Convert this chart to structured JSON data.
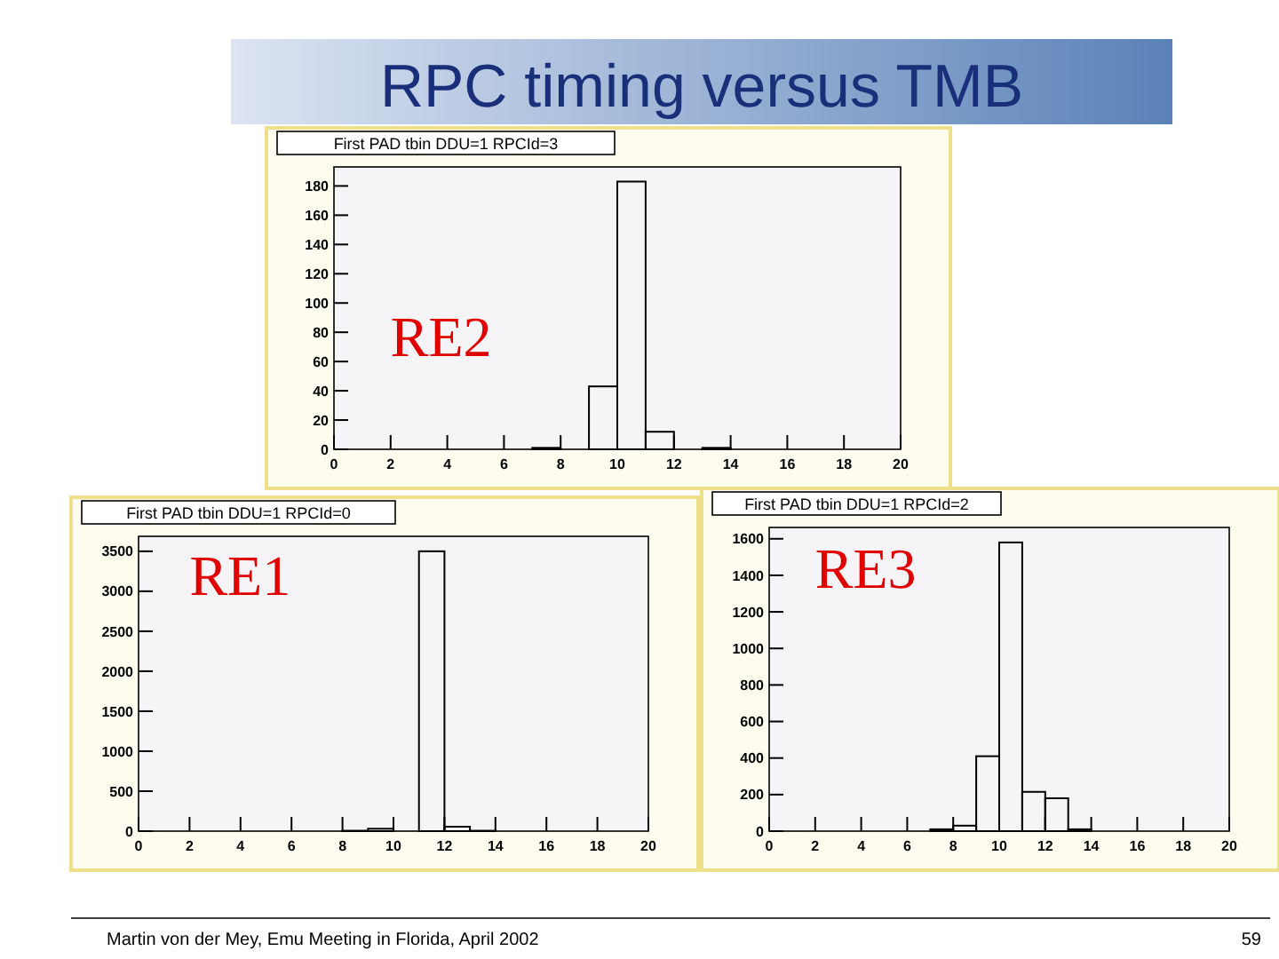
{
  "chart_data": [
    {
      "type": "histogram",
      "title": "First PAD tbin DDU=1 RPCId=3",
      "color": "#000000",
      "bins": [
        0,
        1,
        2,
        3,
        4,
        5,
        6,
        7,
        8,
        9,
        10,
        11,
        12,
        13,
        14,
        15,
        16,
        17,
        18,
        19,
        20
      ],
      "values": [
        0,
        0,
        0,
        0,
        0,
        0,
        0,
        1,
        0,
        43,
        183,
        12,
        0,
        1,
        0,
        0,
        0,
        0,
        0,
        0
      ],
      "xlim": [
        0,
        20
      ],
      "xticks": [
        0,
        2,
        4,
        6,
        8,
        10,
        12,
        14,
        16,
        18,
        20
      ],
      "ylim": [
        0,
        193
      ],
      "yticks": [
        0,
        20,
        40,
        60,
        80,
        100,
        120,
        140,
        160,
        180
      ],
      "annotations": [
        "RE2",
        "RPC timing versus TMB",
        "Martin von der Mey, Emu Meeting in Florida, April 2002",
        "59"
      ]
    },
    {
      "type": "histogram",
      "title": "First PAD tbin DDU=1 RPCId=0",
      "color": "#000000",
      "bins": [
        0,
        1,
        2,
        3,
        4,
        5,
        6,
        7,
        8,
        9,
        10,
        11,
        12,
        13,
        14,
        15,
        16,
        17,
        18,
        19,
        20
      ],
      "values": [
        0,
        0,
        0,
        0,
        0,
        0,
        0,
        0,
        5,
        30,
        0,
        3500,
        55,
        5,
        0,
        0,
        0,
        0,
        0,
        0
      ],
      "xlim": [
        0,
        20
      ],
      "xticks": [
        0,
        2,
        4,
        6,
        8,
        10,
        12,
        14,
        16,
        18,
        20
      ],
      "ylim": [
        0,
        3687
      ],
      "yticks": [
        0,
        500,
        1000,
        1500,
        2000,
        2500,
        3000,
        3500
      ],
      "annotations": [
        "RE1"
      ]
    },
    {
      "type": "histogram",
      "title": "First PAD tbin DDU=1 RPCId=2",
      "color": "#000000",
      "bins": [
        0,
        1,
        2,
        3,
        4,
        5,
        6,
        7,
        8,
        9,
        10,
        11,
        12,
        13,
        14,
        15,
        16,
        17,
        18,
        19,
        20
      ],
      "values": [
        0,
        0,
        0,
        0,
        0,
        0,
        0,
        10,
        30,
        410,
        1580,
        215,
        180,
        10,
        0,
        0,
        0,
        0,
        0,
        0
      ],
      "xlim": [
        0,
        20
      ],
      "xticks": [
        0,
        2,
        4,
        6,
        8,
        10,
        12,
        14,
        16,
        18,
        20
      ],
      "ylim": [
        0,
        1662
      ],
      "yticks": [
        0,
        200,
        400,
        600,
        800,
        1000,
        1200,
        1400,
        1600
      ],
      "annotations": [
        "RE3"
      ]
    }
  ]
}
